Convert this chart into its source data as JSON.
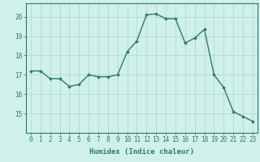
{
  "x": [
    0,
    1,
    2,
    3,
    4,
    5,
    6,
    7,
    8,
    9,
    10,
    11,
    12,
    13,
    14,
    15,
    16,
    17,
    18,
    19,
    20,
    21,
    22,
    23
  ],
  "y": [
    17.2,
    17.2,
    16.8,
    16.8,
    16.4,
    16.5,
    17.0,
    16.9,
    16.9,
    17.0,
    18.2,
    18.75,
    20.1,
    20.15,
    19.9,
    19.9,
    18.65,
    18.9,
    19.35,
    17.0,
    16.35,
    15.1,
    14.85,
    14.6
  ],
  "line_color": "#2d7a6e",
  "marker": "D",
  "markersize": 2.0,
  "linewidth": 1.0,
  "xlabel": "Humidex (Indice chaleur)",
  "ylabel": "",
  "xlim": [
    -0.5,
    23.5
  ],
  "ylim": [
    14.0,
    20.7
  ],
  "yticks": [
    15,
    16,
    17,
    18,
    19,
    20
  ],
  "xticks": [
    0,
    1,
    2,
    3,
    4,
    5,
    6,
    7,
    8,
    9,
    10,
    11,
    12,
    13,
    14,
    15,
    16,
    17,
    18,
    19,
    20,
    21,
    22,
    23
  ],
  "xtick_labels": [
    "0",
    "1",
    "2",
    "3",
    "4",
    "5",
    "6",
    "7",
    "8",
    "9",
    "10",
    "11",
    "12",
    "13",
    "14",
    "15",
    "16",
    "17",
    "18",
    "19",
    "20",
    "21",
    "22",
    "23"
  ],
  "bg_color": "#cff0eb",
  "grid_color": "#aad8d0",
  "axes_color": "#2d7a6e",
  "tick_color": "#2d7a6e",
  "label_color": "#2d7a6e",
  "xlabel_fontsize": 6.5,
  "tick_fontsize": 5.5
}
